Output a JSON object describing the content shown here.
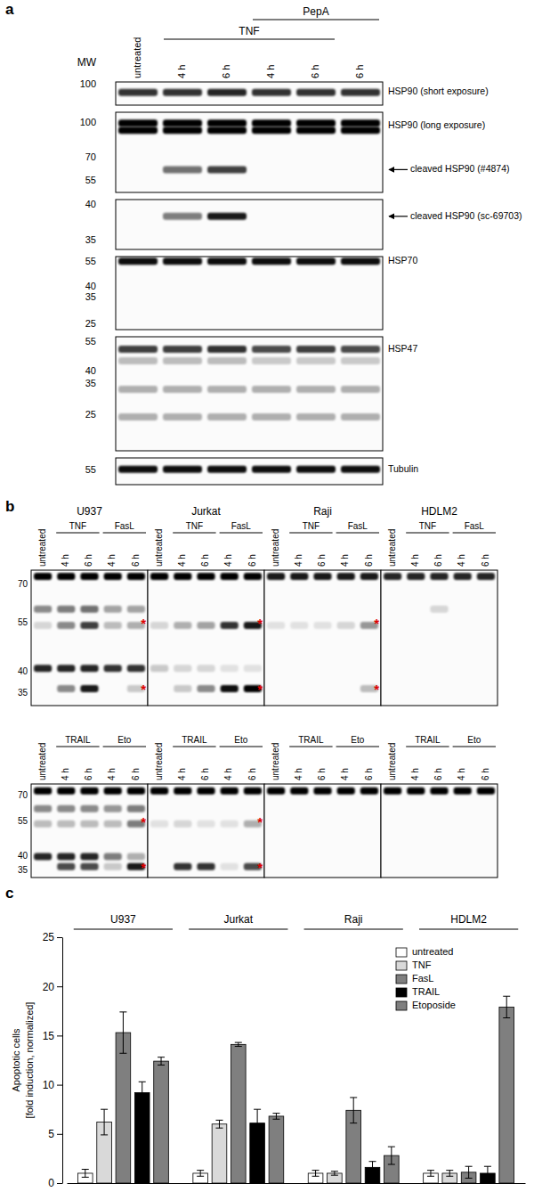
{
  "figure": {
    "panel_a": {
      "label": "a",
      "mw_title": "MW",
      "lanes": [
        "untreated",
        "4 h",
        "6 h",
        "4 h",
        "6 h",
        "6 h"
      ],
      "groups": [
        {
          "label": "TNF",
          "from": 1,
          "to": 4
        },
        {
          "label": "PepA",
          "from": 3,
          "to": 5
        }
      ],
      "blots": [
        {
          "mw_ticks": [
            100
          ],
          "mw_range": [
            103,
            82
          ],
          "bands": [
            {
              "mw": 93,
              "lanes": [
                0.8,
                0.8,
                0.85,
                0.8,
                0.8,
                0.8
              ]
            }
          ],
          "labels": [
            {
              "text": "HSP90 (short exposure)",
              "mw": 93,
              "arrow": false
            }
          ]
        },
        {
          "mw_ticks": [
            100,
            70,
            55
          ],
          "mw_range": [
            112,
            49
          ],
          "bands": [
            {
              "mw": 100,
              "lanes": [
                1,
                1,
                1,
                1,
                1,
                1
              ]
            },
            {
              "mw": 93,
              "lanes": [
                1,
                1,
                1,
                1,
                1,
                1
              ]
            },
            {
              "mw": 62,
              "lanes": [
                0,
                0.55,
                0.75,
                0,
                0,
                0
              ]
            }
          ],
          "labels": [
            {
              "text": "HSP90 (long exposure)",
              "mw": 97,
              "arrow": false
            },
            {
              "text": "cleaved HSP90 (#4874)",
              "mw": 62,
              "arrow": true
            }
          ]
        },
        {
          "mw_ticks": [
            40,
            35
          ],
          "mw_range": [
            40.8,
            33.8
          ],
          "bands": [
            {
              "mw": 38.3,
              "lanes": [
                0,
                0.5,
                0.9,
                0,
                0,
                0
              ]
            }
          ],
          "labels": [
            {
              "text": "cleaved HSP90 (sc-69703)",
              "mw": 38.3,
              "arrow": true
            }
          ]
        },
        {
          "mw_ticks": [
            55,
            40,
            35,
            25
          ],
          "mw_range": [
            58.8,
            23.4
          ],
          "bands": [
            {
              "mw": 55.5,
              "lanes": [
                0.95,
                0.95,
                0.95,
                0.95,
                0.95,
                0.95
              ]
            }
          ],
          "labels": [
            {
              "text": "HSP70",
              "mw": 55.5,
              "arrow": false
            }
          ]
        },
        {
          "mw_ticks": [
            55,
            40,
            35,
            25
          ],
          "mw_range": [
            58.3,
            17
          ],
          "bands": [
            {
              "mw": 51,
              "lanes": [
                0.75,
                0.75,
                0.8,
                0.7,
                0.75,
                0.7
              ]
            },
            {
              "mw": 45,
              "lanes": [
                0.25,
                0.25,
                0.25,
                0.2,
                0.2,
                0.2
              ]
            },
            {
              "mw": 33,
              "lanes": [
                0.3,
                0.3,
                0.3,
                0.3,
                0.3,
                0.3
              ]
            },
            {
              "mw": 24.5,
              "lanes": [
                0.3,
                0.3,
                0.3,
                0.3,
                0.3,
                0.3
              ]
            }
          ],
          "labels": [
            {
              "text": "HSP47",
              "mw": 51,
              "arrow": false
            }
          ]
        },
        {
          "mw_ticks": [
            55
          ],
          "mw_range": [
            60,
            50
          ],
          "bands": [
            {
              "mw": 55.5,
              "lanes": [
                0.95,
                0.95,
                0.95,
                0.95,
                0.95,
                0.95
              ]
            }
          ],
          "labels": [
            {
              "text": "Tubulin",
              "mw": 55.5,
              "arrow": false
            }
          ]
        }
      ]
    },
    "panel_b": {
      "label": "b",
      "asterisk": "*",
      "cell_lines": [
        "U937",
        "Jurkat",
        "Raji",
        "HDLM2"
      ],
      "rows": [
        {
          "lanes": [
            "untreated",
            "4 h",
            "6 h",
            "4 h",
            "6 h"
          ],
          "groups": [
            {
              "label": "TNF",
              "from": 1,
              "to": 2
            },
            {
              "label": "FasL",
              "from": 3,
              "to": 4
            }
          ],
          "mw_ticks": [
            70,
            55,
            40,
            35
          ],
          "mw_range": [
            77,
            32.3
          ],
          "blots": [
            {
              "bands": [
                {
                  "mw": 74,
                  "lanes": [
                    1,
                    1,
                    1,
                    1,
                    1
                  ]
                },
                {
                  "mw": 60,
                  "lanes": [
                    0.45,
                    0.5,
                    0.55,
                    0.35,
                    0.35
                  ]
                },
                {
                  "mw": 54,
                  "lanes": [
                    0.15,
                    0.45,
                    0.75,
                    0.25,
                    0.3
                  ]
                },
                {
                  "mw": 41,
                  "lanes": [
                    0.85,
                    0.85,
                    0.85,
                    0.8,
                    0.8
                  ]
                },
                {
                  "mw": 36,
                  "lanes": [
                    0,
                    0.45,
                    0.9,
                    0,
                    0.2
                  ]
                }
              ],
              "asterisks": [
                55,
                36
              ]
            },
            {
              "bands": [
                {
                  "mw": 74,
                  "lanes": [
                    1,
                    1,
                    1,
                    1,
                    1
                  ]
                },
                {
                  "mw": 54,
                  "lanes": [
                    0.15,
                    0.3,
                    0.35,
                    0.8,
                    0.9
                  ]
                },
                {
                  "mw": 41,
                  "lanes": [
                    0.2,
                    0.15,
                    0.15,
                    0.1,
                    0.1
                  ]
                },
                {
                  "mw": 36,
                  "lanes": [
                    0,
                    0.2,
                    0.45,
                    0.95,
                    1
                  ]
                }
              ],
              "asterisks": [
                55,
                36
              ]
            },
            {
              "bands": [
                {
                  "mw": 74,
                  "lanes": [
                    0.9,
                    0.9,
                    0.9,
                    0.9,
                    0.9
                  ]
                },
                {
                  "mw": 54,
                  "lanes": [
                    0.1,
                    0.1,
                    0.1,
                    0.15,
                    0.4
                  ]
                },
                {
                  "mw": 36,
                  "lanes": [
                    0,
                    0,
                    0,
                    0,
                    0.25
                  ]
                }
              ],
              "asterisks": [
                55,
                36
              ]
            },
            {
              "bands": [
                {
                  "mw": 74,
                  "lanes": [
                    0.85,
                    0.85,
                    0.85,
                    0.85,
                    0.85
                  ]
                },
                {
                  "mw": 60,
                  "lanes": [
                    0,
                    0,
                    0.15,
                    0,
                    0
                  ]
                }
              ],
              "asterisks": []
            }
          ]
        },
        {
          "lanes": [
            "untreated",
            "4 h",
            "6 h",
            "4 h",
            "6 h"
          ],
          "groups": [
            {
              "label": "TRAIL",
              "from": 1,
              "to": 2
            },
            {
              "label": "Eto",
              "from": 3,
              "to": 4
            }
          ],
          "mw_ticks": [
            70,
            55,
            40,
            35
          ],
          "mw_range": [
            77.8,
            33
          ],
          "blots": [
            {
              "bands": [
                {
                  "mw": 73,
                  "lanes": [
                    1,
                    1,
                    1,
                    1,
                    1
                  ]
                },
                {
                  "mw": 62,
                  "lanes": [
                    0.45,
                    0.45,
                    0.45,
                    0.4,
                    0.5
                  ]
                },
                {
                  "mw": 54,
                  "lanes": [
                    0.25,
                    0.25,
                    0.25,
                    0.25,
                    0.5
                  ]
                },
                {
                  "mw": 40,
                  "lanes": [
                    0.85,
                    0.85,
                    0.85,
                    0.5,
                    0.3
                  ]
                },
                {
                  "mw": 36.5,
                  "lanes": [
                    0,
                    0.7,
                    0.7,
                    0.2,
                    0.9
                  ]
                }
              ],
              "asterisks": [
                55,
                36.5
              ]
            },
            {
              "bands": [
                {
                  "mw": 73,
                  "lanes": [
                    1,
                    1,
                    1,
                    1,
                    1
                  ]
                },
                {
                  "mw": 54,
                  "lanes": [
                    0.1,
                    0.15,
                    0.1,
                    0.1,
                    0.3
                  ]
                },
                {
                  "mw": 36.5,
                  "lanes": [
                    0,
                    0.8,
                    0.8,
                    0.1,
                    0.7
                  ]
                }
              ],
              "asterisks": [
                55,
                36.5
              ]
            },
            {
              "bands": [
                {
                  "mw": 73,
                  "lanes": [
                    1,
                    1,
                    1,
                    1,
                    1
                  ]
                }
              ],
              "asterisks": []
            },
            {
              "bands": [
                {
                  "mw": 73,
                  "lanes": [
                    1,
                    1,
                    1,
                    1,
                    1
                  ]
                }
              ],
              "asterisks": []
            }
          ]
        }
      ]
    },
    "panel_c": {
      "label": "c"
    }
  },
  "chart_data": {
    "type": "bar",
    "categories": [
      "U937",
      "Jurkat",
      "Raji",
      "HDLM2"
    ],
    "series": [
      {
        "name": "untreated",
        "color": "#ffffff",
        "values": [
          1.0,
          1.0,
          1.0,
          1.0
        ],
        "errors": [
          0.4,
          0.3,
          0.3,
          0.3
        ]
      },
      {
        "name": "TNF",
        "color": "#d9d9d9",
        "values": [
          6.2,
          6.0,
          1.0,
          1.0
        ],
        "errors": [
          1.3,
          0.4,
          0.2,
          0.3
        ]
      },
      {
        "name": "FasL",
        "color": "#7f7f7f",
        "values": [
          15.3,
          14.1,
          7.4,
          1.1
        ],
        "errors": [
          2.1,
          0.2,
          1.3,
          0.6
        ]
      },
      {
        "name": "TRAIL",
        "color": "#000000",
        "values": [
          9.2,
          6.1,
          1.6,
          1.0
        ],
        "errors": [
          1.1,
          1.4,
          0.6,
          0.7
        ]
      },
      {
        "name": "Etoposide",
        "color": "#7f7f7f",
        "values": [
          12.4,
          6.8,
          2.8,
          17.9
        ],
        "errors": [
          0.4,
          0.3,
          0.9,
          1.1
        ]
      }
    ],
    "ylabel": [
      "Apoptotic cells",
      "[fold induction, normalized]"
    ],
    "ylim": [
      0,
      25
    ],
    "yticks": [
      0,
      5,
      10,
      15,
      20,
      25
    ],
    "legend": "top-right"
  }
}
